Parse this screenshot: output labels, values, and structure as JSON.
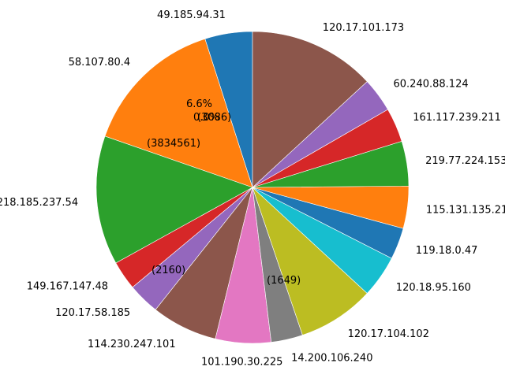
{
  "chart_data": {
    "type": "pie",
    "title": "",
    "start_angle_deg": 90,
    "direction": "counterclockwise",
    "palette": [
      "#1f77b4",
      "#ff7f0e",
      "#2ca02c",
      "#d62728",
      "#9467bd",
      "#8c564b",
      "#e377c2",
      "#7f7f7f",
      "#bcbd22",
      "#17becf"
    ],
    "labeled_slices": [
      {
        "label": "49.185.94.31",
        "value": 1.8
      },
      {
        "label": "58.107.80.4",
        "value": 5.4
      },
      {
        "label": "218.185.237.54",
        "value": 4.9
      },
      {
        "label": "149.167.147.48",
        "value": 1.1
      },
      {
        "label": "120.17.58.185",
        "value": 1.2
      },
      {
        "label": "114.230.247.101",
        "value": 2.5
      },
      {
        "label": "101.190.30.225",
        "value": 2.1
      },
      {
        "label": "14.200.106.240",
        "value": 1.2
      },
      {
        "label": "120.17.104.102",
        "value": 2.9
      },
      {
        "label": "120.18.95.160",
        "value": 1.6
      },
      {
        "label": "119.18.0.47",
        "value": 1.2
      },
      {
        "label": "115.131.135.21",
        "value": 1.6
      },
      {
        "label": "219.77.224.153",
        "value": 1.7
      },
      {
        "label": "161.117.239.211",
        "value": 1.3
      },
      {
        "label": "60.240.88.124",
        "value": 1.3
      },
      {
        "label": "120.17.101.173",
        "value": 4.8
      }
    ],
    "visible_text": {
      "pct_a": "6.6%",
      "pct_b": "0.0%",
      "count_a": "(3834561)",
      "count_b": "(3086)",
      "count_c": "(2160)",
      "count_d": "(1649)"
    }
  }
}
